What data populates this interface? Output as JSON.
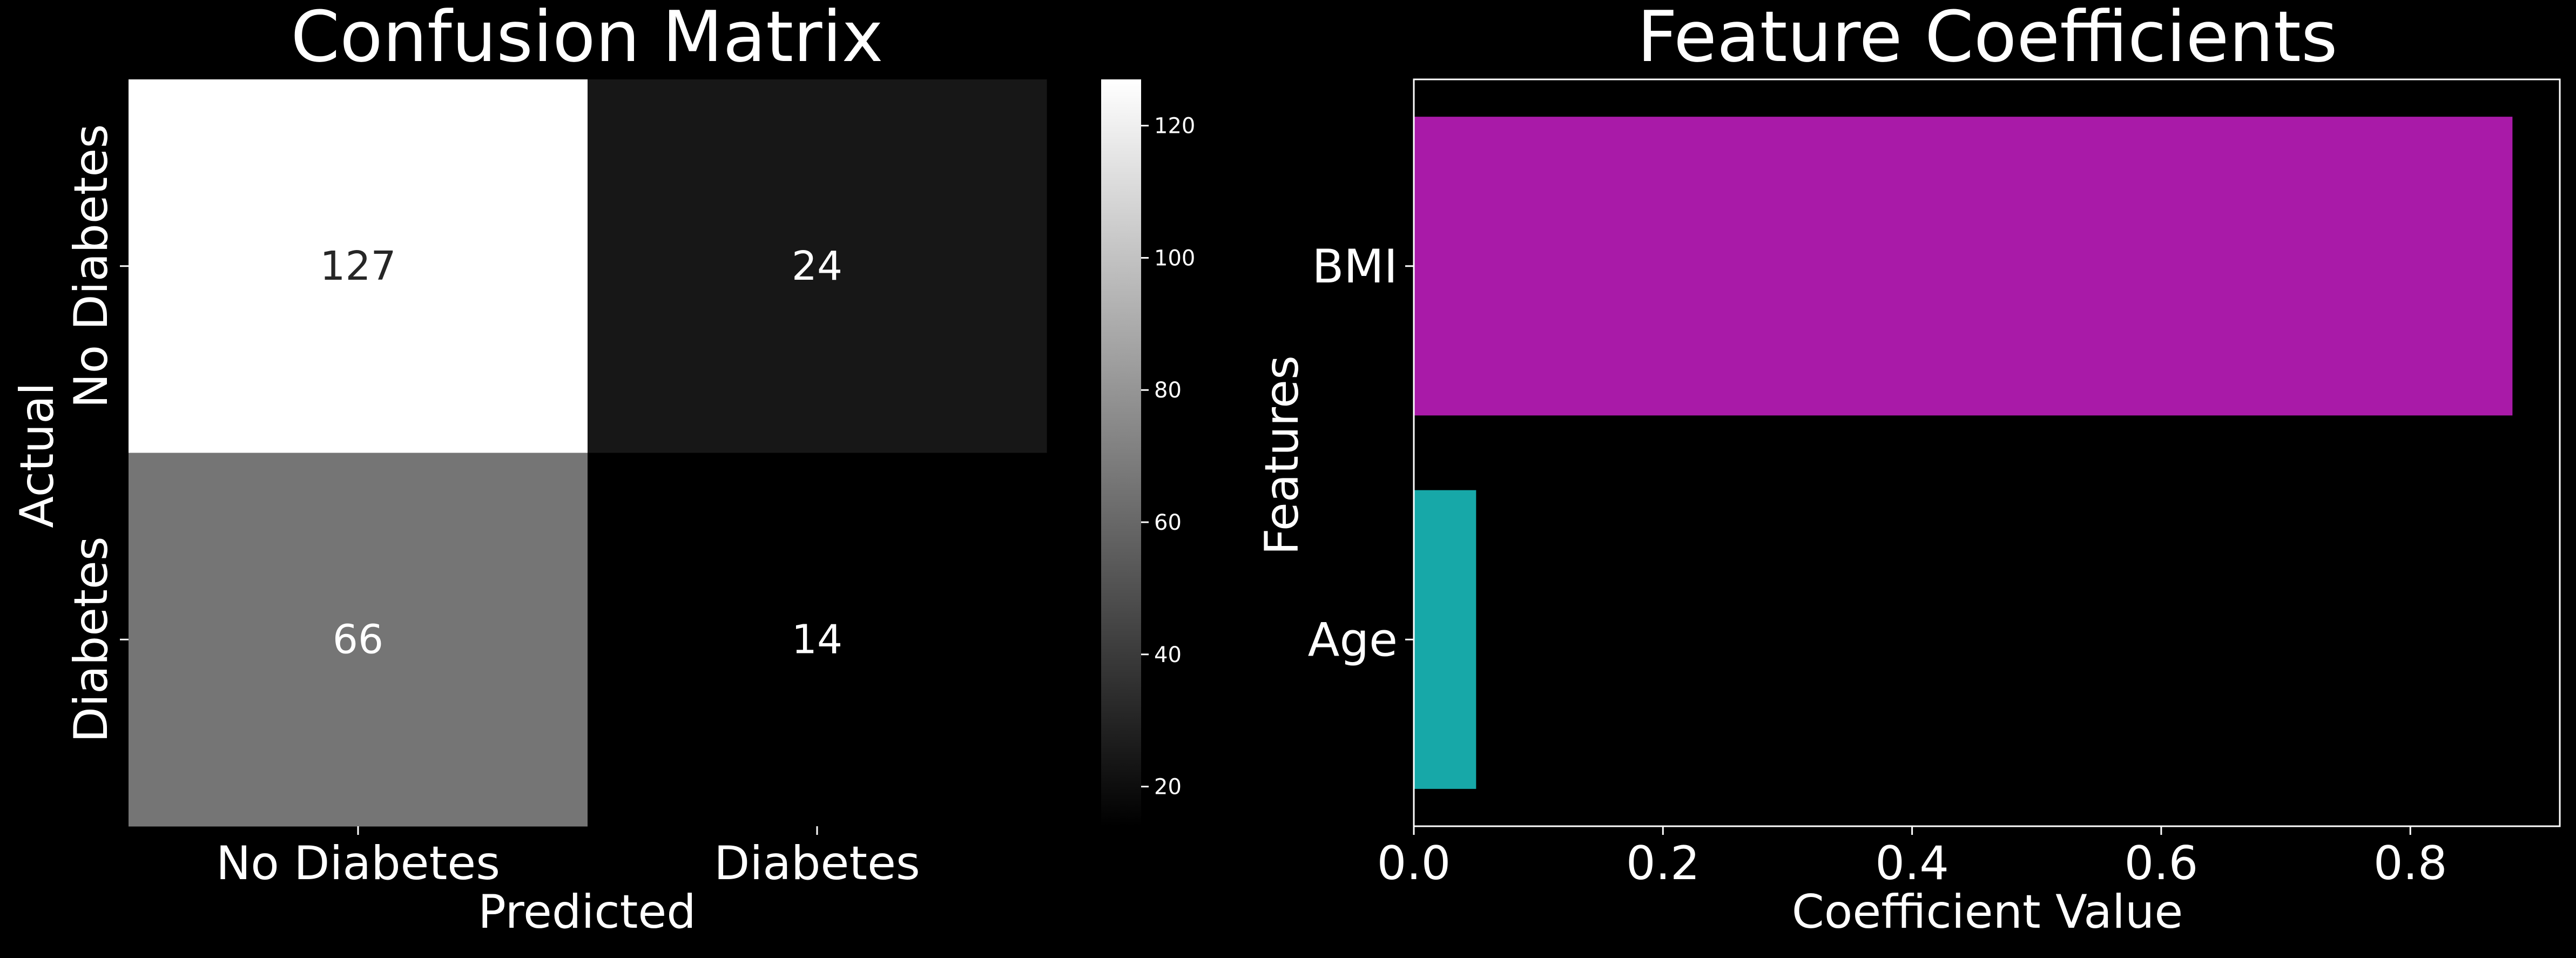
{
  "chart_data": [
    {
      "type": "heatmap",
      "title": "Confusion Matrix",
      "xlabel": "Predicted",
      "ylabel": "Actual",
      "x_categories": [
        "No Diabetes",
        "Diabetes"
      ],
      "y_categories": [
        "No Diabetes",
        "Diabetes"
      ],
      "values": [
        [
          127,
          24
        ],
        [
          66,
          14
        ]
      ],
      "colormap": "gray",
      "colorbar": {
        "range": [
          14,
          127
        ],
        "ticks": [
          20,
          40,
          60,
          80,
          100,
          120
        ]
      },
      "background": "#000000"
    },
    {
      "type": "bar",
      "orientation": "horizontal",
      "title": "Feature Coefficients",
      "xlabel": "Coefficient Value",
      "ylabel": "Features",
      "categories": [
        "BMI",
        "Age"
      ],
      "values": [
        0.882,
        0.05
      ],
      "colors": [
        "#a91aa8",
        "#17a8a8"
      ],
      "xlim": [
        0,
        0.92
      ],
      "xticks": [
        "0.0",
        "0.2",
        "0.4",
        "0.6",
        "0.8"
      ],
      "grid": false,
      "background": "#000000"
    }
  ]
}
